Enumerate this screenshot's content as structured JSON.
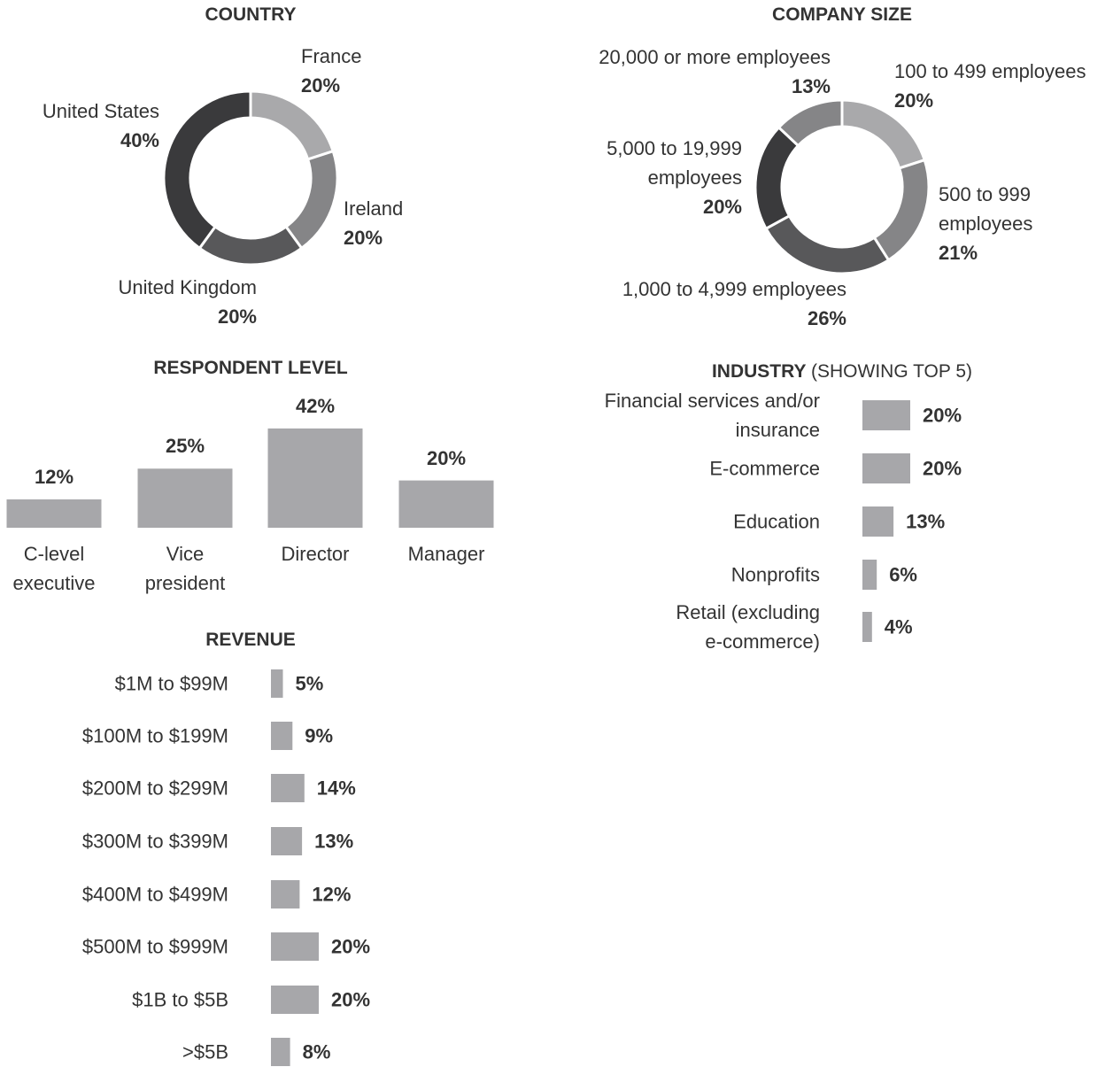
{
  "chart_data": [
    {
      "type": "donut",
      "title": "COUNTRY",
      "categories": [
        "France",
        "Ireland",
        "United Kingdom",
        "United States"
      ],
      "values": [
        20,
        20,
        20,
        40
      ],
      "value_labels": [
        "20%",
        "20%",
        "20%",
        "40%"
      ],
      "colors": [
        "#a9a9ab",
        "#858587",
        "#58585a",
        "#3a3a3c"
      ]
    },
    {
      "type": "donut",
      "title": "COMPANY SIZE",
      "categories": [
        "100 to 499 employees",
        "500 to 999 employees",
        "1,000 to 4,999 employees",
        "5,000 to 19,999 employees",
        "20,000 or more employees"
      ],
      "values": [
        20,
        21,
        26,
        20,
        13
      ],
      "value_labels": [
        "20%",
        "21%",
        "26%",
        "20%",
        "13%"
      ],
      "colors": [
        "#a9a9ab",
        "#858587",
        "#58585a",
        "#3a3a3c",
        "#858587"
      ]
    },
    {
      "type": "bar",
      "orientation": "vertical",
      "title": "RESPONDENT LEVEL",
      "categories": [
        "C-level executive",
        "Vice president",
        "Director",
        "Manager"
      ],
      "values": [
        12,
        25,
        42,
        20
      ],
      "value_labels": [
        "12%",
        "25%",
        "42%",
        "20%"
      ],
      "color": "#a7a7aa"
    },
    {
      "type": "bar",
      "orientation": "horizontal",
      "title": "INDUSTRY",
      "subtitle": "(SHOWING TOP 5)",
      "categories": [
        "Financial services and/or insurance",
        "E-commerce",
        "Education",
        "Nonprofits",
        "Retail (excluding e-commerce)"
      ],
      "values": [
        20,
        20,
        13,
        6,
        4
      ],
      "value_labels": [
        "20%",
        "20%",
        "13%",
        "6%",
        "4%"
      ],
      "color": "#a7a7aa"
    },
    {
      "type": "bar",
      "orientation": "horizontal",
      "title": "REVENUE",
      "categories": [
        "$1M to $99M",
        "$100M to $199M",
        "$200M to $299M",
        "$300M to $399M",
        "$400M to $499M",
        "$500M to $999M",
        "$1B to $5B",
        ">$5B"
      ],
      "values": [
        5,
        9,
        14,
        13,
        12,
        20,
        20,
        8
      ],
      "value_labels": [
        "5%",
        "9%",
        "14%",
        "13%",
        "12%",
        "20%",
        "20%",
        "8%"
      ],
      "color": "#a7a7aa"
    }
  ]
}
